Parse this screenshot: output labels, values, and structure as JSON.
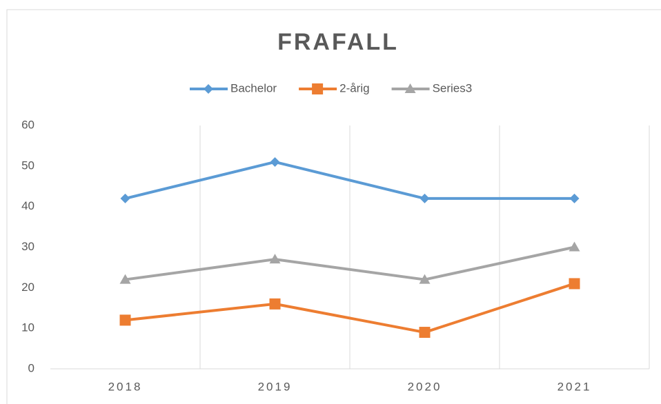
{
  "chart_data": {
    "type": "line",
    "title": "FRAFALL",
    "categories": [
      "2018",
      "2019",
      "2020",
      "2021"
    ],
    "series": [
      {
        "name": "Bachelor",
        "color": "#5b9bd5",
        "marker": "diamond",
        "values": [
          42,
          51,
          42,
          42
        ]
      },
      {
        "name": "2-årig",
        "color": "#ed7d31",
        "marker": "square",
        "values": [
          12,
          16,
          9,
          21
        ]
      },
      {
        "name": "Series3",
        "color": "#a5a5a5",
        "marker": "triangle",
        "values": [
          22,
          27,
          22,
          30
        ]
      }
    ],
    "ylim": [
      0,
      60
    ],
    "yticks": [
      0,
      10,
      20,
      30,
      40,
      50,
      60
    ],
    "grid": "x",
    "legend": "top"
  }
}
